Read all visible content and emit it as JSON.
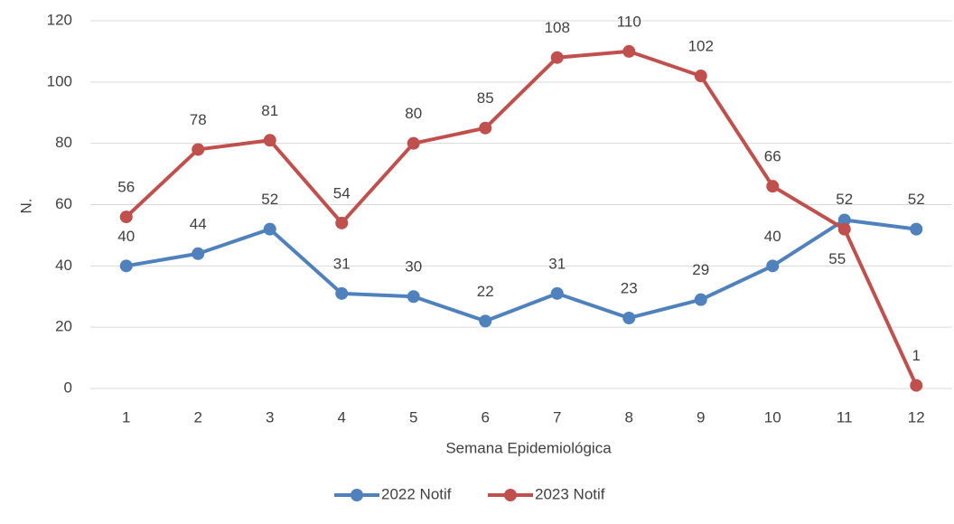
{
  "chart_data": {
    "type": "line",
    "x_label": "Semana Epidemiológica",
    "y_label": "N.",
    "categories": [
      "1",
      "2",
      "3",
      "4",
      "5",
      "6",
      "7",
      "8",
      "9",
      "10",
      "11",
      "12"
    ],
    "series": [
      {
        "name": "2022 Notif",
        "color": "#4f81bd",
        "values": [
          40,
          44,
          52,
          31,
          30,
          22,
          31,
          23,
          29,
          40,
          55,
          52
        ]
      },
      {
        "name": "2023 Notif",
        "color": "#c0504d",
        "values": [
          56,
          78,
          81,
          54,
          80,
          85,
          108,
          110,
          102,
          66,
          52,
          1
        ]
      }
    ],
    "ylim": [
      0,
      120
    ],
    "yticks": [
      0,
      20,
      40,
      60,
      80,
      100,
      120
    ],
    "grid": true,
    "legend": "bottom"
  }
}
